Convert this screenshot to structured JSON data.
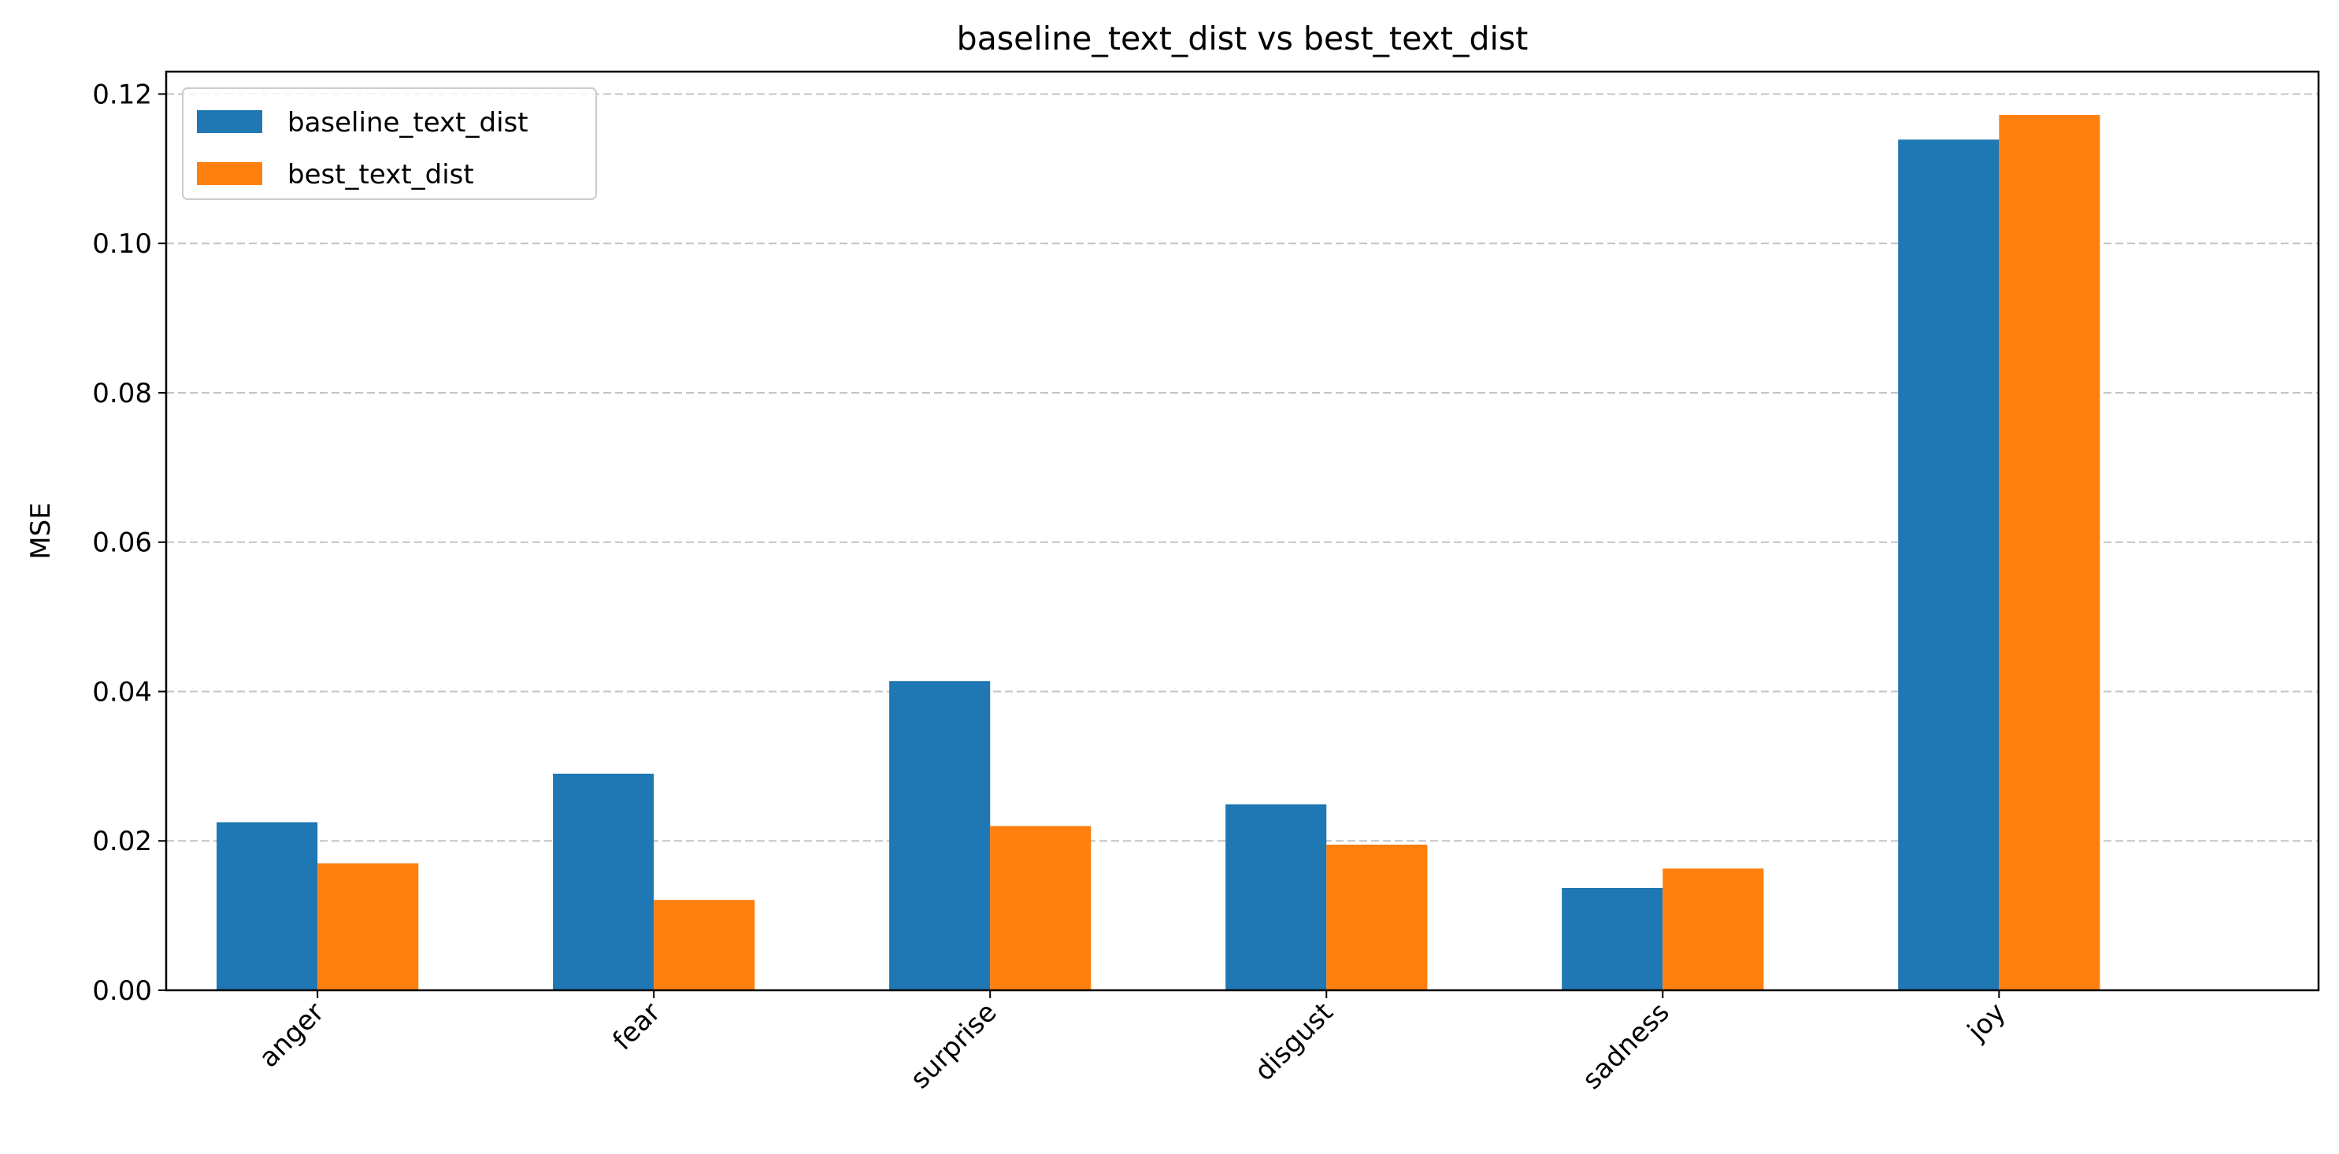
{
  "chart_data": {
    "type": "bar",
    "title": "baseline_text_dist vs best_text_dist",
    "xlabel": "",
    "ylabel": "MSE",
    "categories": [
      "anger",
      "fear",
      "surprise",
      "disgust",
      "sadness",
      "joy"
    ],
    "series": [
      {
        "name": "baseline_text_dist",
        "color": "#1f77b4",
        "values": [
          0.0225,
          0.029,
          0.0414,
          0.0249,
          0.0137,
          0.1139
        ]
      },
      {
        "name": "best_text_dist",
        "color": "#ff7f0e",
        "values": [
          0.017,
          0.0121,
          0.022,
          0.0195,
          0.0163,
          0.1172
        ]
      }
    ],
    "ylim": [
      0,
      0.123
    ],
    "yticks": [
      0.0,
      0.02,
      0.04,
      0.06,
      0.08,
      0.1,
      0.12
    ],
    "ytick_labels": [
      "0.00",
      "0.02",
      "0.04",
      "0.06",
      "0.08",
      "0.10",
      "0.12"
    ],
    "grid": "y-dashed",
    "legend_position": "top-left",
    "xtick_rotation": 45
  }
}
